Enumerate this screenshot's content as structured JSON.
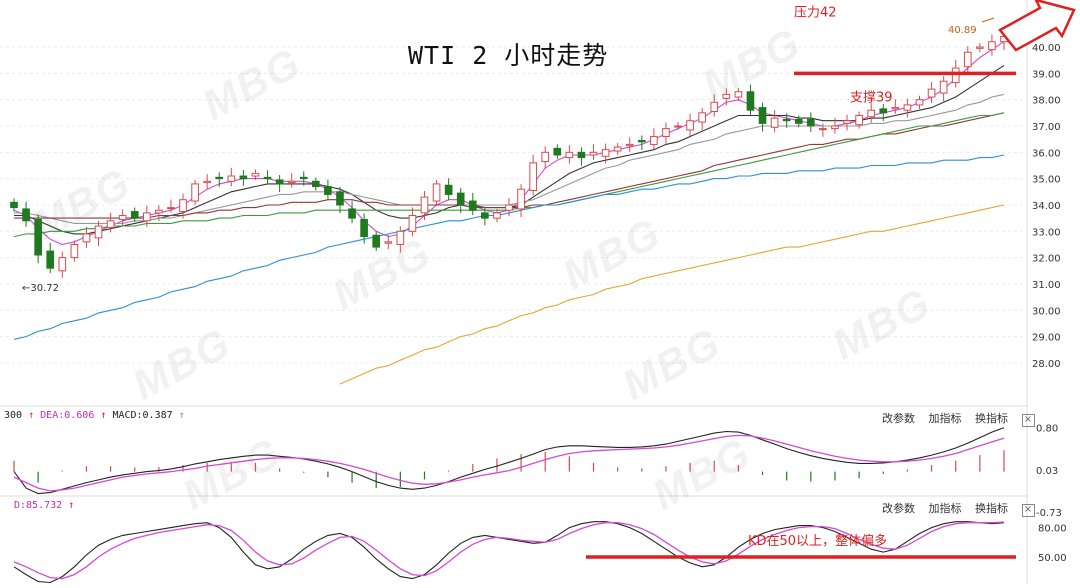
{
  "title": "WTI 2 小时走势",
  "watermark": "MBG",
  "annotations": {
    "resistance": "压力42",
    "support": "支撑39",
    "kd_note": "KD在50以上，整体偏多",
    "high_label": "40.89",
    "low_label": "30.72"
  },
  "macd_pane": {
    "label_prefix": "300",
    "dea": "DEA:0.606",
    "macd": "MACD:0.387",
    "buttons": [
      "改参数",
      "加指标",
      "换指标"
    ],
    "close": "×"
  },
  "kd_pane": {
    "d_label": "D:85.732",
    "buttons": [
      "改参数",
      "加指标",
      "换指标"
    ],
    "close": "×"
  },
  "colors": {
    "up": "#d94b4b",
    "down": "#1f7a1f",
    "annotation": "#e02020",
    "ma_magenta": "#d44ad4",
    "ma_black": "#333333",
    "ma_brown": "#8b3a3a",
    "ma_gray": "#999999",
    "ma_green": "#3c9a3c",
    "ma_blue": "#2b8fd9",
    "ma_orange": "#e8a534"
  },
  "chart_data": [
    {
      "type": "line",
      "subtype": "candlestick",
      "title": "WTI 2 小时走势",
      "yticks": [
        "40.00",
        "39.00",
        "38.00",
        "37.00",
        "36.00",
        "35.00",
        "34.00",
        "33.00",
        "32.00",
        "31.00",
        "30.00",
        "29.00",
        "28.00"
      ],
      "ylim": [
        27,
        41.5
      ],
      "annotations": [
        {
          "text": "压力42",
          "value": 42
        },
        {
          "text": "支撑39",
          "value": 39
        },
        {
          "text": "40.89",
          "value": 40.89
        },
        {
          "text": "30.72",
          "value": 30.72
        }
      ],
      "close": [
        33.9,
        33.4,
        32.1,
        31.6,
        32.0,
        32.5,
        32.9,
        33.2,
        33.4,
        33.6,
        33.5,
        33.7,
        33.8,
        33.9,
        34.2,
        34.8,
        34.9,
        35.0,
        35.1,
        35.0,
        35.2,
        35.0,
        34.8,
        34.9,
        35.0,
        34.7,
        34.4,
        34.0,
        33.5,
        32.8,
        32.4,
        32.6,
        33.0,
        33.6,
        34.3,
        34.8,
        34.4,
        34.0,
        33.8,
        33.5,
        33.7,
        34.0,
        34.6,
        35.6,
        36.0,
        35.9,
        36.0,
        35.8,
        36.0,
        36.1,
        36.2,
        36.3,
        36.4,
        36.6,
        36.9,
        37.0,
        37.2,
        37.5,
        37.9,
        38.2,
        38.3,
        37.6,
        37.1,
        37.3,
        37.2,
        37.1,
        37.0,
        36.9,
        37.0,
        37.2,
        37.4,
        37.6,
        37.5,
        37.7,
        37.8,
        38.0,
        38.4,
        38.7,
        39.2,
        39.8,
        40.0,
        40.2,
        40.4
      ],
      "series": [
        {
          "name": "",
          "values": [
            33.8,
            33.6,
            33.1,
            32.7,
            32.5,
            32.6,
            32.8,
            33.0,
            33.2,
            33.4,
            33.5,
            33.6,
            33.7,
            33.8,
            34.0,
            34.3,
            34.6,
            34.8,
            34.9,
            35.0,
            35.0,
            35.0,
            34.9,
            34.9,
            34.9,
            34.8,
            34.6,
            34.3,
            33.9,
            33.4,
            33.0,
            32.8,
            32.9,
            33.2,
            33.6,
            34.0,
            34.2,
            34.2,
            34.0,
            33.8,
            33.7,
            33.8,
            34.2,
            34.8,
            35.4,
            35.7,
            35.9,
            35.9,
            35.9,
            36.0,
            36.1,
            36.2,
            36.3,
            36.5,
            36.7,
            36.9,
            37.1,
            37.3,
            37.6,
            37.9,
            38.0,
            37.8,
            37.5,
            37.4,
            37.3,
            37.2,
            37.1,
            37.0,
            37.0,
            37.1,
            37.2,
            37.4,
            37.5,
            37.6,
            37.7,
            37.9,
            38.1,
            38.4,
            38.8,
            39.2,
            39.6,
            39.9,
            40.2
          ]
        },
        {
          "name": "",
          "values": [
            33.6,
            33.6,
            33.4,
            33.2,
            33.0,
            32.9,
            32.9,
            33.0,
            33.1,
            33.2,
            33.3,
            33.4,
            33.5,
            33.6,
            33.7,
            33.9,
            34.1,
            34.3,
            34.5,
            34.6,
            34.7,
            34.8,
            34.8,
            34.8,
            34.8,
            34.8,
            34.7,
            34.6,
            34.4,
            34.1,
            33.8,
            33.6,
            33.5,
            33.5,
            33.6,
            33.7,
            33.9,
            34.0,
            34.0,
            33.9,
            33.9,
            33.9,
            34.0,
            34.3,
            34.6,
            34.9,
            35.2,
            35.4,
            35.6,
            35.7,
            35.8,
            35.9,
            36.0,
            36.1,
            36.3,
            36.4,
            36.6,
            36.8,
            37.0,
            37.2,
            37.4,
            37.4,
            37.4,
            37.4,
            37.4,
            37.3,
            37.3,
            37.2,
            37.2,
            37.2,
            37.2,
            37.3,
            37.3,
            37.4,
            37.5,
            37.6,
            37.7,
            37.9,
            38.1,
            38.4,
            38.7,
            39.0,
            39.3
          ]
        },
        {
          "name": "",
          "values": [
            33.7,
            33.7,
            33.6,
            33.5,
            33.4,
            33.3,
            33.3,
            33.3,
            33.3,
            33.3,
            33.4,
            33.4,
            33.5,
            33.5,
            33.6,
            33.7,
            33.8,
            33.9,
            34.0,
            34.1,
            34.2,
            34.3,
            34.4,
            34.4,
            34.5,
            34.5,
            34.5,
            34.5,
            34.4,
            34.3,
            34.2,
            34.1,
            34.0,
            34.0,
            34.0,
            34.0,
            34.0,
            34.0,
            34.0,
            34.0,
            34.0,
            34.0,
            34.1,
            34.2,
            34.4,
            34.6,
            34.8,
            35.0,
            35.2,
            35.4,
            35.5,
            35.7,
            35.8,
            35.9,
            36.0,
            36.1,
            36.3,
            36.4,
            36.5,
            36.7,
            36.8,
            36.9,
            37.0,
            37.0,
            37.0,
            37.0,
            37.0,
            37.0,
            37.0,
            37.0,
            37.0,
            37.1,
            37.1,
            37.2,
            37.2,
            37.3,
            37.4,
            37.5,
            37.6,
            37.8,
            37.9,
            38.1,
            38.2
          ]
        },
        {
          "name": "",
          "values": [
            33.5,
            33.5,
            33.5,
            33.5,
            33.5,
            33.5,
            33.5,
            33.5,
            33.5,
            33.5,
            33.5,
            33.5,
            33.6,
            33.6,
            33.6,
            33.7,
            33.7,
            33.8,
            33.8,
            33.9,
            33.9,
            34.0,
            34.0,
            34.1,
            34.1,
            34.1,
            34.2,
            34.2,
            34.2,
            34.1,
            34.1,
            34.0,
            34.0,
            34.0,
            34.0,
            34.0,
            34.0,
            34.0,
            33.9,
            33.9,
            33.9,
            33.9,
            33.9,
            34.0,
            34.0,
            34.1,
            34.2,
            34.3,
            34.4,
            34.5,
            34.6,
            34.7,
            34.8,
            34.9,
            35.0,
            35.1,
            35.2,
            35.3,
            35.5,
            35.6,
            35.7,
            35.8,
            35.9,
            36.0,
            36.1,
            36.2,
            36.3,
            36.3,
            36.4,
            36.5,
            36.5,
            36.6,
            36.7,
            36.7,
            36.8,
            36.9,
            37.0,
            37.0,
            37.1,
            37.2,
            37.3,
            37.4,
            37.5
          ]
        },
        {
          "name": "",
          "values": [
            32.8,
            32.9,
            32.9,
            33.0,
            33.0,
            33.0,
            33.1,
            33.1,
            33.2,
            33.2,
            33.2,
            33.3,
            33.3,
            33.3,
            33.4,
            33.4,
            33.4,
            33.5,
            33.5,
            33.6,
            33.6,
            33.6,
            33.7,
            33.7,
            33.7,
            33.8,
            33.8,
            33.8,
            33.8,
            33.8,
            33.8,
            33.8,
            33.8,
            33.8,
            33.8,
            33.8,
            33.8,
            33.8,
            33.8,
            33.8,
            33.8,
            33.8,
            33.9,
            33.9,
            34.0,
            34.0,
            34.1,
            34.2,
            34.3,
            34.4,
            34.5,
            34.6,
            34.7,
            34.8,
            34.9,
            35.0,
            35.1,
            35.2,
            35.3,
            35.4,
            35.5,
            35.6,
            35.7,
            35.8,
            35.9,
            36.0,
            36.1,
            36.2,
            36.3,
            36.4,
            36.5,
            36.6,
            36.7,
            36.8,
            36.9,
            37.0,
            37.0,
            37.1,
            37.2,
            37.3,
            37.4,
            37.4,
            37.5
          ]
        },
        {
          "name": "",
          "values": [
            28.9,
            29.0,
            29.2,
            29.3,
            29.5,
            29.6,
            29.7,
            29.9,
            30.0,
            30.1,
            30.3,
            30.4,
            30.5,
            30.7,
            30.8,
            30.9,
            31.1,
            31.2,
            31.3,
            31.5,
            31.6,
            31.7,
            31.9,
            32.0,
            32.1,
            32.2,
            32.4,
            32.5,
            32.6,
            32.7,
            32.8,
            32.9,
            33.0,
            33.1,
            33.2,
            33.3,
            33.4,
            33.4,
            33.5,
            33.6,
            33.6,
            33.7,
            33.8,
            33.9,
            34.0,
            34.0,
            34.1,
            34.2,
            34.3,
            34.4,
            34.4,
            34.5,
            34.6,
            34.6,
            34.7,
            34.8,
            34.8,
            34.9,
            35.0,
            35.0,
            35.1,
            35.1,
            35.2,
            35.2,
            35.2,
            35.3,
            35.3,
            35.3,
            35.4,
            35.4,
            35.4,
            35.5,
            35.5,
            35.5,
            35.6,
            35.6,
            35.6,
            35.7,
            35.7,
            35.7,
            35.8,
            35.8,
            35.9
          ]
        },
        {
          "name": "",
          "x_start_index": 27,
          "values": [
            27.2,
            27.4,
            27.6,
            27.8,
            27.9,
            28.1,
            28.3,
            28.5,
            28.6,
            28.8,
            29.0,
            29.1,
            29.3,
            29.4,
            29.6,
            29.8,
            29.9,
            30.1,
            30.2,
            30.4,
            30.5,
            30.6,
            30.8,
            30.9,
            31.0,
            31.2,
            31.3,
            31.4,
            31.5,
            31.6,
            31.7,
            31.8,
            31.9,
            32.0,
            32.1,
            32.2,
            32.3,
            32.4,
            32.4,
            32.5,
            32.6,
            32.7,
            32.8,
            32.9,
            33.0,
            33.0,
            33.1,
            33.2,
            33.3,
            33.4,
            33.5,
            33.6,
            33.7,
            33.8,
            33.9,
            34.0
          ]
        }
      ]
    },
    {
      "type": "bar",
      "subtype": "macd",
      "yticks": [
        "0.80",
        "0.03",
        "-0.73"
      ],
      "ylim": [
        -0.8,
        0.95
      ],
      "series": [
        {
          "name": "DEA:0.606",
          "values": [
            -0.1,
            -0.2,
            -0.3,
            -0.35,
            -0.33,
            -0.3,
            -0.25,
            -0.2,
            -0.15,
            -0.1,
            -0.07,
            -0.04,
            -0.02,
            0.0,
            0.03,
            0.06,
            0.1,
            0.13,
            0.16,
            0.19,
            0.22,
            0.24,
            0.25,
            0.25,
            0.24,
            0.22,
            0.19,
            0.15,
            0.1,
            0.04,
            -0.03,
            -0.1,
            -0.16,
            -0.21,
            -0.23,
            -0.22,
            -0.19,
            -0.15,
            -0.1,
            -0.06,
            -0.02,
            0.02,
            0.08,
            0.15,
            0.22,
            0.28,
            0.33,
            0.36,
            0.38,
            0.39,
            0.4,
            0.41,
            0.42,
            0.43,
            0.45,
            0.48,
            0.52,
            0.56,
            0.6,
            0.64,
            0.66,
            0.65,
            0.61,
            0.56,
            0.5,
            0.44,
            0.38,
            0.33,
            0.28,
            0.24,
            0.21,
            0.19,
            0.18,
            0.18,
            0.19,
            0.21,
            0.24,
            0.28,
            0.33,
            0.4,
            0.47,
            0.54,
            0.606
          ]
        },
        {
          "name": "MACD:0.387",
          "values": [
            0.0,
            -0.3,
            -0.4,
            -0.38,
            -0.32,
            -0.26,
            -0.2,
            -0.15,
            -0.1,
            -0.06,
            -0.03,
            0.0,
            0.02,
            0.05,
            0.09,
            0.14,
            0.18,
            0.22,
            0.25,
            0.28,
            0.3,
            0.3,
            0.28,
            0.26,
            0.23,
            0.19,
            0.14,
            0.08,
            0.0,
            -0.09,
            -0.18,
            -0.25,
            -0.3,
            -0.32,
            -0.3,
            -0.25,
            -0.18,
            -0.1,
            -0.03,
            0.04,
            0.1,
            0.17,
            0.24,
            0.32,
            0.4,
            0.45,
            0.47,
            0.47,
            0.46,
            0.45,
            0.44,
            0.44,
            0.45,
            0.47,
            0.5,
            0.55,
            0.6,
            0.65,
            0.7,
            0.73,
            0.72,
            0.66,
            0.58,
            0.5,
            0.42,
            0.35,
            0.29,
            0.24,
            0.2,
            0.17,
            0.15,
            0.15,
            0.16,
            0.18,
            0.21,
            0.25,
            0.3,
            0.36,
            0.43,
            0.52,
            0.62,
            0.72,
            0.8
          ]
        }
      ]
    },
    {
      "type": "line",
      "subtype": "kd",
      "yticks": [
        "80.00",
        "50.00"
      ],
      "ylim": [
        20,
        98
      ],
      "annotations": [
        {
          "text": "KD在50以上，整体偏多",
          "value": 50
        }
      ],
      "series": [
        {
          "name": "",
          "values": [
            40,
            32,
            25,
            24,
            30,
            40,
            52,
            62,
            68,
            72,
            74,
            76,
            78,
            80,
            82,
            84,
            85,
            80,
            70,
            55,
            42,
            38,
            40,
            48,
            58,
            66,
            72,
            74,
            70,
            60,
            48,
            38,
            30,
            28,
            32,
            42,
            54,
            64,
            70,
            72,
            70,
            68,
            66,
            64,
            65,
            72,
            80,
            84,
            86,
            86,
            84,
            80,
            74,
            66,
            58,
            50,
            44,
            40,
            42,
            50,
            60,
            68,
            74,
            78,
            80,
            82,
            82,
            80,
            76,
            70,
            64,
            58,
            55,
            58,
            66,
            74,
            80,
            84,
            86,
            86,
            85,
            84,
            85
          ]
        },
        {
          "name": "D:85.732",
          "values": [
            45,
            40,
            34,
            29,
            28,
            32,
            40,
            50,
            58,
            64,
            69,
            72,
            75,
            77,
            79,
            81,
            83,
            82,
            77,
            67,
            55,
            46,
            42,
            43,
            49,
            57,
            64,
            70,
            71,
            66,
            57,
            47,
            38,
            32,
            31,
            36,
            45,
            55,
            63,
            68,
            70,
            69,
            67,
            66,
            65,
            68,
            74,
            79,
            83,
            85,
            85,
            83,
            79,
            73,
            65,
            57,
            50,
            45,
            43,
            46,
            53,
            61,
            68,
            73,
            77,
            80,
            81,
            81,
            79,
            74,
            68,
            63,
            59,
            58,
            62,
            69,
            76,
            81,
            84,
            85,
            85,
            85,
            85.7
          ]
        }
      ]
    }
  ]
}
